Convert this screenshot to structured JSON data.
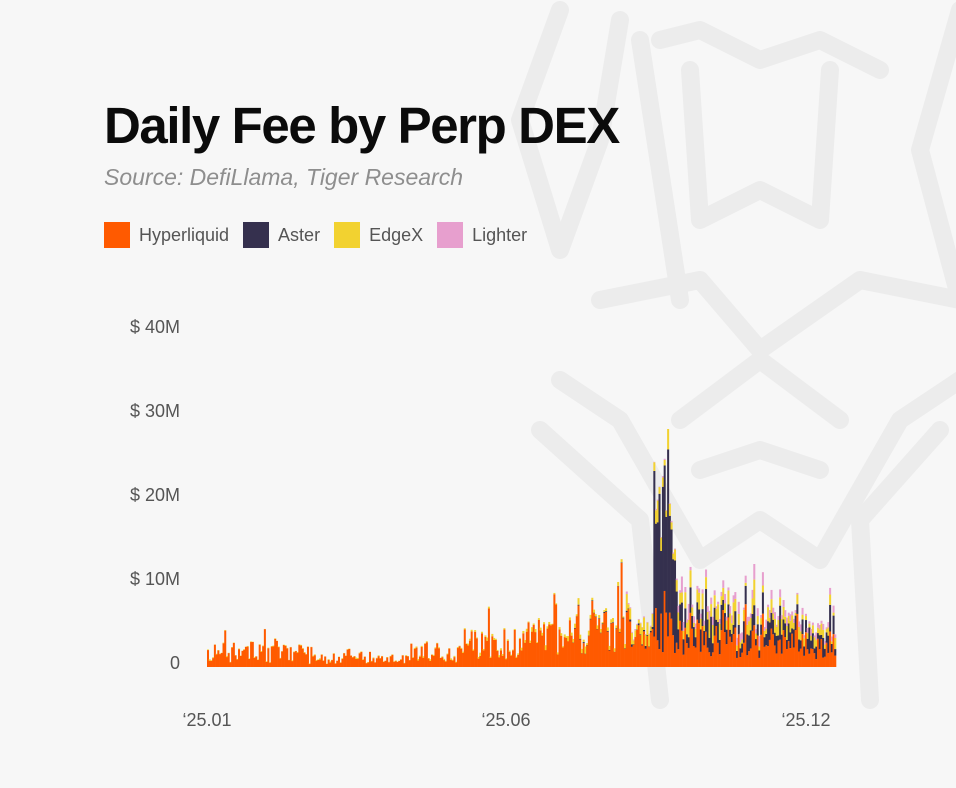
{
  "title": "Daily Fee by Perp DEX",
  "subtitle": "Source: DefiLlama, Tiger Research",
  "legend": [
    {
      "name": "Hyperliquid",
      "color": "#ff5a00"
    },
    {
      "name": "Aster",
      "color": "#35304e"
    },
    {
      "name": "EdgeX",
      "color": "#f2d230"
    },
    {
      "name": "Lighter",
      "color": "#e79fce"
    }
  ],
  "watermark_icon": "tiger-logo-watermark",
  "chart_data": {
    "type": "bar",
    "stacked": true,
    "title": "Daily Fee by Perp DEX",
    "subtitle": "Source: DefiLlama, Tiger Research",
    "x_start": "2025-01-01",
    "x_end": "2025-12-31",
    "x_tick_labels": [
      "‘25.01",
      "‘25.06",
      "‘25.12"
    ],
    "y_tick_labels": [
      "$ 40M",
      "$ 30M",
      "$ 20M",
      "$ 10M",
      "0"
    ],
    "y_ticks": [
      40,
      30,
      20,
      10,
      0
    ],
    "ylim": [
      0,
      40
    ],
    "y_unit": "$M",
    "grid": false,
    "legend_position": "top-left",
    "series_colors": {
      "Hyperliquid": "#ff5a00",
      "Aster": "#35304e",
      "EdgeX": "#f2d230",
      "Lighter": "#e79fce"
    },
    "series_monthly": [
      {
        "name": "Hyperliquid",
        "x": [
          "2025-01",
          "2025-02",
          "2025-03",
          "2025-04",
          "2025-05",
          "2025-06",
          "2025-07",
          "2025-08",
          "2025-09",
          "2025-10",
          "2025-11",
          "2025-12"
        ],
        "values": [
          1.6,
          1.4,
          1.0,
          0.9,
          1.5,
          2.4,
          3.0,
          4.0,
          3.5,
          3.2,
          2.7,
          2.4
        ]
      },
      {
        "name": "Aster",
        "x": [
          "2025-01",
          "2025-02",
          "2025-03",
          "2025-04",
          "2025-05",
          "2025-06",
          "2025-07",
          "2025-08",
          "2025-09",
          "2025-10",
          "2025-11",
          "2025-12"
        ],
        "values": [
          0,
          0,
          0,
          0,
          0,
          0,
          0,
          0.05,
          7.0,
          1.8,
          1.5,
          1.2
        ]
      },
      {
        "name": "EdgeX",
        "x": [
          "2025-01",
          "2025-02",
          "2025-03",
          "2025-04",
          "2025-05",
          "2025-06",
          "2025-07",
          "2025-08",
          "2025-09",
          "2025-10",
          "2025-11",
          "2025-12"
        ],
        "values": [
          0.05,
          0.05,
          0.05,
          0.05,
          0.1,
          0.15,
          0.2,
          0.3,
          1.0,
          1.2,
          1.0,
          0.9
        ]
      },
      {
        "name": "Lighter",
        "x": [
          "2025-01",
          "2025-02",
          "2025-03",
          "2025-04",
          "2025-05",
          "2025-06",
          "2025-07",
          "2025-08",
          "2025-09",
          "2025-10",
          "2025-11",
          "2025-12"
        ],
        "values": [
          0,
          0,
          0,
          0,
          0,
          0,
          0,
          0,
          0.1,
          0.6,
          0.6,
          0.5
        ]
      }
    ],
    "highlights": [
      {
        "date": "2025-09-25",
        "Hyperliquid": 3.6,
        "Aster": 22.0,
        "EdgeX": 2.4,
        "Lighter": 0,
        "total": 28.0
      }
    ]
  }
}
